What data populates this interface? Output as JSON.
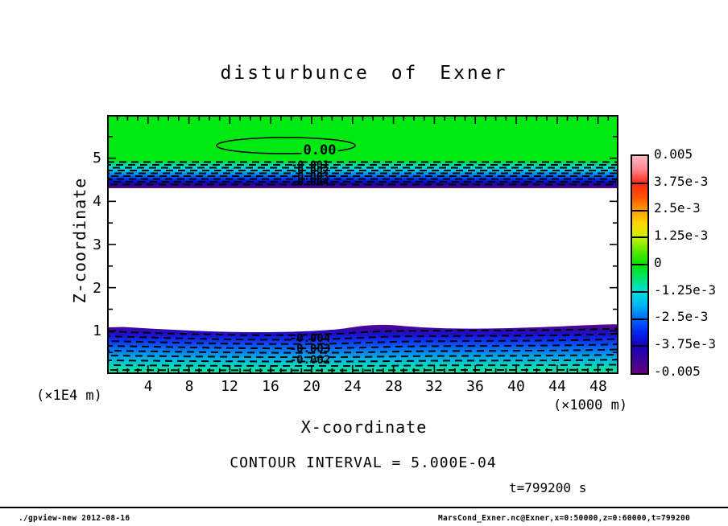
{
  "title": "disturbunce of Exner",
  "axes": {
    "x": {
      "label": "X-coordinate",
      "unit": "(×1000 m)",
      "range": [
        0,
        50
      ],
      "minor_step": 1,
      "major_every": 4,
      "tick_labels": [
        "4",
        "8",
        "12",
        "16",
        "20",
        "24",
        "28",
        "32",
        "36",
        "40",
        "44",
        "48"
      ]
    },
    "y": {
      "label": "Z-coordinate",
      "unit": "(×1E4 m)",
      "range": [
        0,
        6
      ],
      "minor_step": 0.5,
      "major_step": 1,
      "tick_labels": [
        "5",
        "4",
        "3",
        "2",
        "1"
      ]
    }
  },
  "colorbar": {
    "labels": [
      "0.005",
      "3.75e-3",
      "2.5e-3",
      "1.25e-3",
      "0",
      "-1.25e-3",
      "-2.5e-3",
      "-3.75e-3",
      "-0.005"
    ],
    "top_color": "#ffb6c0",
    "positive_mid_color": "#ff9c00",
    "zero_color": "#00e400",
    "negative_mid_color": "#0064fc",
    "bottom_color": "#66007e"
  },
  "contour_labels": {
    "zero": "0.00",
    "upper": [
      "-0.001",
      "-0.002",
      "-0.003",
      "-0.004"
    ],
    "lower": [
      "-0.004",
      "-0.003",
      "-0.002"
    ]
  },
  "notes": {
    "contour_interval": "CONTOUR INTERVAL = 5.000E-04",
    "time": "t=799200 s"
  },
  "footer": {
    "left": "./gpview-new  2012-08-16",
    "right": "MarsCond_Exner.nc@Exner,x=0:50000,z=0:60000,t=799200"
  },
  "chart_data": {
    "type": "heatmap",
    "subtype": "filled-contour",
    "title": "disturbunce of Exner",
    "xlabel": "X-coordinate",
    "x_unit": "×1000 m",
    "ylabel": "Z-coordinate",
    "y_unit": "×1E4 m",
    "xlim": [
      0,
      50
    ],
    "ylim": [
      0,
      6
    ],
    "x_ticks": [
      4,
      8,
      12,
      16,
      20,
      24,
      28,
      32,
      36,
      40,
      44,
      48
    ],
    "y_ticks": [
      1,
      2,
      3,
      4,
      5
    ],
    "colorbar_levels": [
      0.005,
      0.00375,
      0.0025,
      0.00125,
      0,
      -0.00125,
      -0.0025,
      -0.00375,
      -0.005
    ],
    "contour_interval": 0.0005,
    "time_s": 799200,
    "legend_position": "right",
    "grid": false,
    "features": [
      {
        "name": "zero-contour-ellipse",
        "desc": "closed solid contour labeled 0.00",
        "x_range": [
          10.5,
          24
        ],
        "z_center": 5.35,
        "value": 0
      },
      {
        "name": "upper-green-layer",
        "z_range": [
          4.85,
          6.0
        ],
        "value_range": [
          0,
          0.0005
        ],
        "color": "green"
      },
      {
        "name": "upper-gradient-band",
        "z_range": [
          4.3,
          4.85
        ],
        "value_range": [
          -0.005,
          0
        ],
        "labeled_contours": [
          -0.001,
          -0.002,
          -0.003,
          -0.004
        ],
        "desc": "green to cyan to blue to purple, dashed negative contours"
      },
      {
        "name": "mid-blank-region",
        "z_range": [
          1.1,
          4.3
        ],
        "value": "below -0.005 (out of colorbar range, white)"
      },
      {
        "name": "lower-gradient-band",
        "z_range": [
          0,
          1.1
        ],
        "value_range": [
          -0.005,
          -0.001
        ],
        "labeled_contours": [
          -0.004,
          -0.003,
          -0.002
        ],
        "desc": "purple cap at top grading down through blue to cyan-green at surface, wavy upper edge with bump near x=24"
      }
    ]
  }
}
